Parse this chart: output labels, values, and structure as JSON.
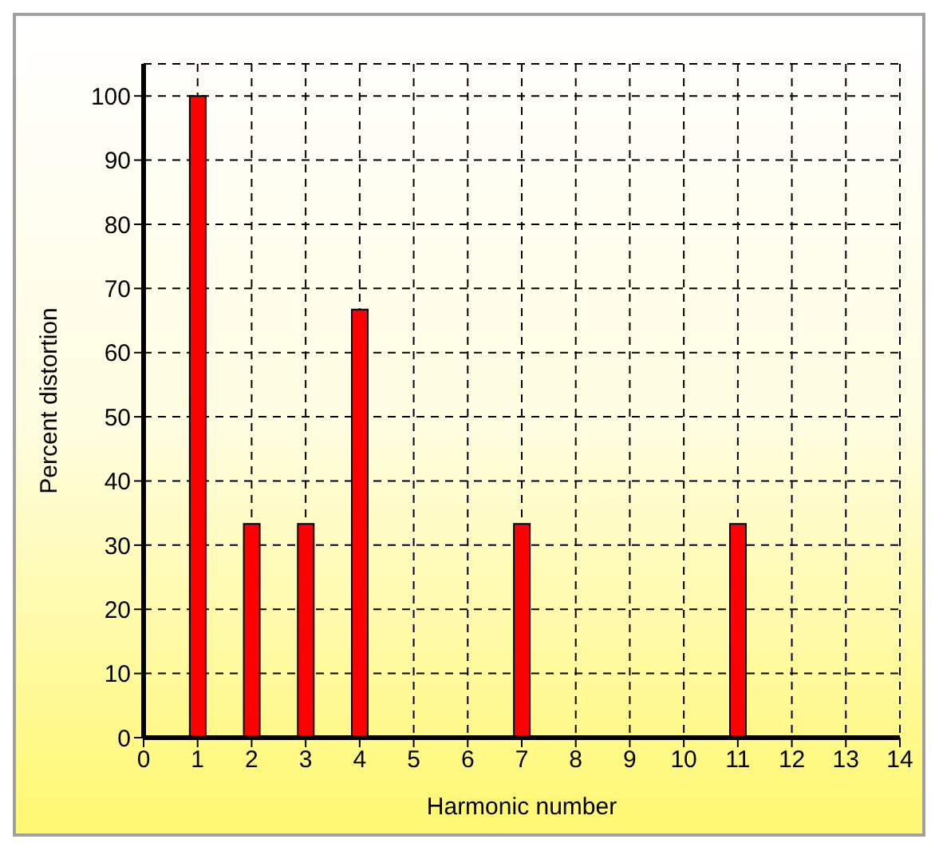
{
  "chart_data": {
    "type": "bar",
    "xlabel": "Harmonic number",
    "ylabel": "Percent distortion",
    "x": [
      1,
      2,
      3,
      4,
      7,
      11
    ],
    "values": [
      100,
      33.3,
      33.3,
      66.7,
      33.3,
      33.3
    ],
    "color": "#ff0000",
    "xlim": [
      0,
      14
    ],
    "xticks": [
      0,
      1,
      2,
      3,
      4,
      5,
      6,
      7,
      8,
      9,
      10,
      11,
      12,
      13,
      14
    ],
    "ylim": [
      0,
      105
    ],
    "yticks": [
      0,
      10,
      20,
      30,
      40,
      50,
      60,
      70,
      80,
      90,
      100
    ],
    "grid": true,
    "legend": false
  }
}
